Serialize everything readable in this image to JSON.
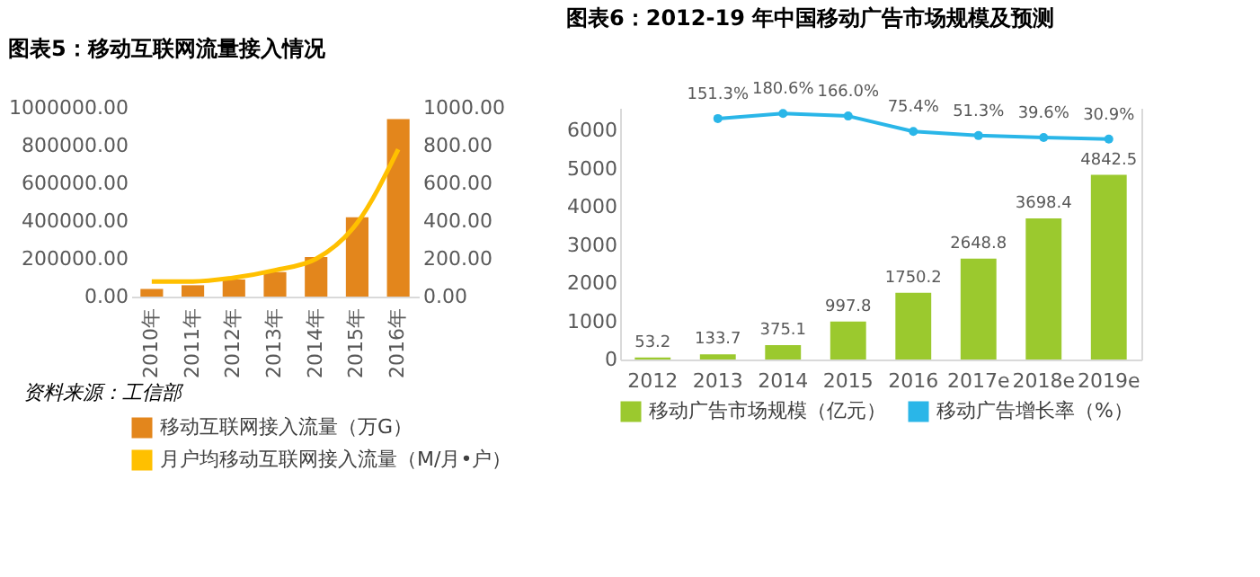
{
  "chart_data": [
    {
      "type": "bar",
      "title": "图表5：移动互联网流量接入情况",
      "categories": [
        "2010年",
        "2011年",
        "2012年",
        "2013年",
        "2014年",
        "2015年",
        "2016年"
      ],
      "series": [
        {
          "name": "移动互联网接入流量（万G）",
          "color": "#e3861c",
          "values": [
            40000,
            60000,
            90000,
            130000,
            210000,
            420000,
            940000
          ]
        },
        {
          "name": "月户均移动互联网接入流量（M/月•户）",
          "type": "line",
          "axis": "y2",
          "color": "#ffc000",
          "values": [
            80,
            80,
            100,
            140,
            200,
            390,
            780
          ]
        }
      ],
      "ylim": [
        0,
        1000000
      ],
      "yticks": [
        {
          "value": 0,
          "label": "0.00"
        },
        {
          "value": 200000,
          "label": "200000.00"
        },
        {
          "value": 400000,
          "label": "400000.00"
        },
        {
          "value": 600000,
          "label": "600000.00"
        },
        {
          "value": 800000,
          "label": "800000.00"
        },
        {
          "value": 1000000,
          "label": "1000000.00"
        }
      ],
      "y2lim": [
        0,
        1000
      ],
      "y2ticks": [
        {
          "value": 0,
          "label": "0.00"
        },
        {
          "value": 200,
          "label": "200.00"
        },
        {
          "value": 400,
          "label": "400.00"
        },
        {
          "value": 600,
          "label": "600.00"
        },
        {
          "value": 800,
          "label": "800.00"
        },
        {
          "value": 1000,
          "label": "1000.00"
        }
      ],
      "legend": "bottom",
      "annotations": [
        "资料来源：工信部"
      ]
    },
    {
      "type": "bar",
      "title": "图表6：2012-19 年中国移动广告市场规模及预测",
      "categories": [
        "2012",
        "2013",
        "2014",
        "2015",
        "2016",
        "2017e",
        "2018e",
        "2019e"
      ],
      "series": [
        {
          "name": "移动广告市场规模（亿元）",
          "color": "#9bc92e",
          "values": [
            53.2,
            133.7,
            375.1,
            997.8,
            1750.2,
            2648.8,
            3698.4,
            4842.5
          ],
          "value_labels": [
            "53.2",
            "133.7",
            "375.1",
            "997.8",
            "1750.2",
            "2648.8",
            "3698.4",
            "4842.5"
          ]
        },
        {
          "name": "移动广告增长率（%）",
          "type": "line",
          "axis": "y2",
          "marker": "circle",
          "color": "#2ab6e8",
          "values": [
            null,
            151.3,
            180.6,
            166.0,
            75.4,
            51.3,
            39.6,
            30.9
          ],
          "value_labels": [
            null,
            "151.3%",
            "180.6%",
            "166.0%",
            "75.4%",
            "51.3%",
            "39.6%",
            "30.9%"
          ]
        }
      ],
      "ylim": [
        0,
        6600
      ],
      "yticks": [
        0,
        1000,
        2000,
        3000,
        4000,
        5000,
        6000
      ],
      "y2lim": [
        -1262,
        214
      ],
      "legend": "bottom"
    }
  ]
}
